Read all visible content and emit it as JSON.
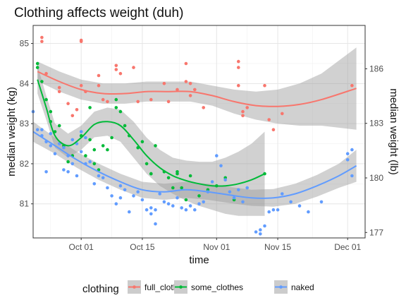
{
  "chart_data": {
    "type": "scatter",
    "title": "Clothing affects weight (duh)",
    "xlabel": "time",
    "ylabel": "median weight (kg)",
    "y2label": "median weight (lb)",
    "grid": true,
    "legend_position": "bottom",
    "legend_title": "clothing",
    "x_domain": [
      "2018-09-20",
      "2018-12-05"
    ],
    "y_domain": [
      80.15,
      85.45
    ],
    "x_ticks": [
      {
        "date": "2018-10-01",
        "label": "Oct 01"
      },
      {
        "date": "2018-10-15",
        "label": "Oct 15"
      },
      {
        "date": "2018-11-01",
        "label": "Nov 01"
      },
      {
        "date": "2018-11-15",
        "label": "Nov 15"
      },
      {
        "date": "2018-12-01",
        "label": "Dec 01"
      }
    ],
    "y_ticks": [
      81,
      82,
      83,
      84,
      85
    ],
    "y2_ticks": [
      177,
      180,
      183,
      186
    ],
    "series": [
      {
        "name": "full_clothes",
        "color": "#F8766D",
        "points": [
          [
            "2018-09-22",
            85.15
          ],
          [
            "2018-09-22",
            85.05
          ],
          [
            "2018-09-23",
            84.25
          ],
          [
            "2018-09-26",
            83.9
          ],
          [
            "2018-09-26",
            83.8
          ],
          [
            "2018-09-28",
            83.5
          ],
          [
            "2018-09-29",
            83.2
          ],
          [
            "2018-09-30",
            83.35
          ],
          [
            "2018-10-01",
            85.05
          ],
          [
            "2018-10-01",
            85.08
          ],
          [
            "2018-10-01",
            83.95
          ],
          [
            "2018-10-02",
            83.8
          ],
          [
            "2018-10-05",
            84.2
          ],
          [
            "2018-10-05",
            83.95
          ],
          [
            "2018-10-06",
            83.6
          ],
          [
            "2018-10-07",
            83.55
          ],
          [
            "2018-10-09",
            84.45
          ],
          [
            "2018-10-09",
            84.35
          ],
          [
            "2018-10-10",
            84.25
          ],
          [
            "2018-10-13",
            84.4
          ],
          [
            "2018-10-14",
            83.55
          ],
          [
            "2018-10-17",
            83.6
          ],
          [
            "2018-10-20",
            84.0
          ],
          [
            "2018-10-21",
            83.55
          ],
          [
            "2018-10-23",
            83.85
          ],
          [
            "2018-10-25",
            84.5
          ],
          [
            "2018-10-25",
            84.05
          ],
          [
            "2018-10-26",
            84.0
          ],
          [
            "2018-10-26",
            83.7
          ],
          [
            "2018-10-27",
            83.85
          ],
          [
            "2018-10-29",
            83.4
          ],
          [
            "2018-11-06",
            84.55
          ],
          [
            "2018-11-06",
            84.4
          ],
          [
            "2018-11-06",
            83.95
          ],
          [
            "2018-11-07",
            83.3
          ],
          [
            "2018-11-07",
            83.2
          ],
          [
            "2018-11-08",
            83.4
          ],
          [
            "2018-11-12",
            83.95
          ],
          [
            "2018-11-13",
            83.1
          ],
          [
            "2018-11-14",
            82.85
          ],
          [
            "2018-11-16",
            83.25
          ],
          [
            "2018-12-02",
            83.95
          ]
        ]
      },
      {
        "name": "some_clothes",
        "color": "#00BA38",
        "points": [
          [
            "2018-09-21",
            84.5
          ],
          [
            "2018-09-21",
            84.4
          ],
          [
            "2018-09-22",
            84.05
          ],
          [
            "2018-09-23",
            83.6
          ],
          [
            "2018-09-24",
            83.3
          ],
          [
            "2018-09-24",
            83.05
          ],
          [
            "2018-09-25",
            82.8
          ],
          [
            "2018-09-26",
            82.95
          ],
          [
            "2018-09-27",
            82.45
          ],
          [
            "2018-09-28",
            82.05
          ],
          [
            "2018-09-29",
            82.2
          ],
          [
            "2018-10-01",
            82.7
          ],
          [
            "2018-10-02",
            82.2
          ],
          [
            "2018-10-03",
            83.4
          ],
          [
            "2018-10-03",
            82.6
          ],
          [
            "2018-10-04",
            82.0
          ],
          [
            "2018-10-04",
            82.35
          ],
          [
            "2018-10-05",
            81.85
          ],
          [
            "2018-10-06",
            82.45
          ],
          [
            "2018-10-07",
            82.35
          ],
          [
            "2018-10-08",
            82.65
          ],
          [
            "2018-10-09",
            83.6
          ],
          [
            "2018-10-09",
            83.4
          ],
          [
            "2018-10-10",
            83.3
          ],
          [
            "2018-10-11",
            82.95
          ],
          [
            "2018-10-12",
            82.7
          ],
          [
            "2018-10-14",
            82.4
          ],
          [
            "2018-10-15",
            82.55
          ],
          [
            "2018-10-16",
            82.0
          ],
          [
            "2018-10-17",
            81.75
          ],
          [
            "2018-10-17",
            81.75
          ],
          [
            "2018-10-18",
            82.45
          ],
          [
            "2018-10-20",
            81.8
          ],
          [
            "2018-10-21",
            81.65
          ],
          [
            "2018-10-22",
            81.4
          ],
          [
            "2018-10-23",
            81.8
          ],
          [
            "2018-10-23",
            81.75
          ],
          [
            "2018-10-24",
            81.4
          ],
          [
            "2018-10-25",
            81.1
          ],
          [
            "2018-10-26",
            81.7
          ],
          [
            "2018-10-28",
            81.2
          ],
          [
            "2018-10-30",
            81.35
          ],
          [
            "2018-11-01",
            81.45
          ],
          [
            "2018-11-03",
            81.65
          ],
          [
            "2018-11-05",
            81.1
          ],
          [
            "2018-11-12",
            81.75
          ]
        ]
      },
      {
        "name": "naked",
        "color": "#619CFF",
        "points": [
          [
            "2018-09-20",
            83.3
          ],
          [
            "2018-09-21",
            82.85
          ],
          [
            "2018-09-22",
            82.85
          ],
          [
            "2018-09-22",
            82.7
          ],
          [
            "2018-09-23",
            82.55
          ],
          [
            "2018-09-23",
            81.8
          ],
          [
            "2018-09-24",
            82.75
          ],
          [
            "2018-09-24",
            82.45
          ],
          [
            "2018-09-25",
            82.25
          ],
          [
            "2018-09-26",
            82.5
          ],
          [
            "2018-09-27",
            82.4
          ],
          [
            "2018-09-27",
            81.85
          ],
          [
            "2018-09-28",
            82.2
          ],
          [
            "2018-09-28",
            81.8
          ],
          [
            "2018-09-29",
            82.6
          ],
          [
            "2018-09-29",
            82.0
          ],
          [
            "2018-09-30",
            82.5
          ],
          [
            "2018-09-30",
            81.7
          ],
          [
            "2018-10-01",
            82.8
          ],
          [
            "2018-10-01",
            82.3
          ],
          [
            "2018-10-02",
            82.65
          ],
          [
            "2018-10-02",
            82.0
          ],
          [
            "2018-10-03",
            82.05
          ],
          [
            "2018-10-04",
            81.5
          ],
          [
            "2018-10-05",
            81.7
          ],
          [
            "2018-10-06",
            81.65
          ],
          [
            "2018-10-07",
            81.4
          ],
          [
            "2018-10-08",
            81.2
          ],
          [
            "2018-10-09",
            81.0
          ],
          [
            "2018-10-10",
            81.45
          ],
          [
            "2018-10-10",
            81.15
          ],
          [
            "2018-10-11",
            81.35
          ],
          [
            "2018-10-12",
            80.8
          ],
          [
            "2018-10-13",
            81.2
          ],
          [
            "2018-10-14",
            81.3
          ],
          [
            "2018-10-15",
            81.1
          ],
          [
            "2018-10-16",
            80.85
          ],
          [
            "2018-10-17",
            80.75
          ],
          [
            "2018-10-17",
            80.9
          ],
          [
            "2018-10-18",
            80.5
          ],
          [
            "2018-10-18",
            80.85
          ],
          [
            "2018-10-19",
            81.25
          ],
          [
            "2018-10-20",
            81.05
          ],
          [
            "2018-10-21",
            81.0
          ],
          [
            "2018-10-22",
            80.95
          ],
          [
            "2018-10-23",
            81.15
          ],
          [
            "2018-10-24",
            80.9
          ],
          [
            "2018-10-25",
            80.85
          ],
          [
            "2018-10-26",
            80.95
          ],
          [
            "2018-10-27",
            80.85
          ],
          [
            "2018-10-28",
            81.0
          ],
          [
            "2018-10-29",
            81.05
          ],
          [
            "2018-10-30",
            81.3
          ],
          [
            "2018-10-31",
            81.55
          ],
          [
            "2018-11-01",
            82.2
          ],
          [
            "2018-11-02",
            81.95
          ],
          [
            "2018-11-03",
            81.6
          ],
          [
            "2018-11-04",
            81.3
          ],
          [
            "2018-11-05",
            81.15
          ],
          [
            "2018-11-06",
            81.35
          ],
          [
            "2018-11-07",
            81.05
          ],
          [
            "2018-11-08",
            81.4
          ],
          [
            "2018-11-10",
            80.3
          ],
          [
            "2018-11-11",
            80.35
          ],
          [
            "2018-11-11",
            80.25
          ],
          [
            "2018-11-12",
            80.45
          ],
          [
            "2018-11-13",
            80.8
          ],
          [
            "2018-11-14",
            80.85
          ],
          [
            "2018-11-15",
            80.85
          ],
          [
            "2018-11-16",
            81.25
          ],
          [
            "2018-11-18",
            81.05
          ],
          [
            "2018-11-20",
            80.95
          ],
          [
            "2018-11-22",
            80.8
          ],
          [
            "2018-11-25",
            81.05
          ],
          [
            "2018-12-01",
            82.25
          ],
          [
            "2018-12-01",
            82.1
          ],
          [
            "2018-12-02",
            82.35
          ],
          [
            "2018-12-02",
            81.7
          ]
        ]
      }
    ],
    "smooth": [
      {
        "name": "full_clothes",
        "color": "#F8766D",
        "fit": [
          [
            "2018-09-21",
            84.3
          ],
          [
            "2018-09-26",
            84.05
          ],
          [
            "2018-10-01",
            83.85
          ],
          [
            "2018-10-06",
            83.75
          ],
          [
            "2018-10-11",
            83.75
          ],
          [
            "2018-10-16",
            83.8
          ],
          [
            "2018-10-21",
            83.8
          ],
          [
            "2018-10-26",
            83.8
          ],
          [
            "2018-10-31",
            83.7
          ],
          [
            "2018-11-05",
            83.55
          ],
          [
            "2018-11-10",
            83.45
          ],
          [
            "2018-11-15",
            83.43
          ],
          [
            "2018-11-20",
            83.48
          ],
          [
            "2018-11-25",
            83.6
          ],
          [
            "2018-12-03",
            83.88
          ]
        ],
        "band": [
          [
            84.55,
            84.06
          ],
          [
            84.3,
            83.8
          ],
          [
            84.1,
            83.6
          ],
          [
            84.0,
            83.5
          ],
          [
            84.0,
            83.5
          ],
          [
            84.05,
            83.55
          ],
          [
            84.05,
            83.55
          ],
          [
            84.05,
            83.55
          ],
          [
            83.95,
            83.45
          ],
          [
            83.85,
            83.25
          ],
          [
            83.8,
            83.1
          ],
          [
            83.85,
            83.0
          ],
          [
            84.0,
            82.95
          ],
          [
            84.25,
            82.95
          ],
          [
            84.9,
            82.85
          ]
        ]
      },
      {
        "name": "some_clothes",
        "color": "#00BA38",
        "fit": [
          [
            "2018-09-21",
            84.1
          ],
          [
            "2018-09-23",
            83.4
          ],
          [
            "2018-09-25",
            82.7
          ],
          [
            "2018-09-28",
            82.45
          ],
          [
            "2018-10-01",
            82.65
          ],
          [
            "2018-10-04",
            82.98
          ],
          [
            "2018-10-07",
            83.05
          ],
          [
            "2018-10-10",
            82.95
          ],
          [
            "2018-10-13",
            82.6
          ],
          [
            "2018-10-16",
            82.2
          ],
          [
            "2018-10-19",
            81.9
          ],
          [
            "2018-10-22",
            81.7
          ],
          [
            "2018-10-25",
            81.58
          ],
          [
            "2018-10-28",
            81.5
          ],
          [
            "2018-10-31",
            81.45
          ],
          [
            "2018-11-03",
            81.45
          ],
          [
            "2018-11-06",
            81.5
          ],
          [
            "2018-11-09",
            81.6
          ],
          [
            "2018-11-12",
            81.75
          ]
        ],
        "band": [
          [
            84.45,
            83.75
          ],
          [
            83.7,
            83.1
          ],
          [
            83.0,
            82.4
          ],
          [
            82.75,
            82.15
          ],
          [
            82.95,
            82.35
          ],
          [
            83.3,
            82.66
          ],
          [
            83.4,
            82.7
          ],
          [
            83.35,
            82.55
          ],
          [
            83.05,
            82.15
          ],
          [
            82.65,
            81.75
          ],
          [
            82.35,
            81.45
          ],
          [
            82.15,
            81.25
          ],
          [
            82.08,
            81.08
          ],
          [
            82.05,
            80.95
          ],
          [
            82.05,
            80.85
          ],
          [
            82.15,
            80.75
          ],
          [
            82.3,
            80.7
          ],
          [
            82.5,
            80.7
          ],
          [
            82.8,
            80.7
          ]
        ]
      },
      {
        "name": "naked",
        "color": "#619CFF",
        "fit": [
          [
            "2018-09-20",
            82.8
          ],
          [
            "2018-09-25",
            82.45
          ],
          [
            "2018-09-30",
            82.1
          ],
          [
            "2018-10-05",
            81.8
          ],
          [
            "2018-10-10",
            81.55
          ],
          [
            "2018-10-15",
            81.35
          ],
          [
            "2018-10-20",
            81.3
          ],
          [
            "2018-10-25",
            81.35
          ],
          [
            "2018-10-30",
            81.3
          ],
          [
            "2018-11-04",
            81.22
          ],
          [
            "2018-11-09",
            81.15
          ],
          [
            "2018-11-14",
            81.15
          ],
          [
            "2018-11-19",
            81.25
          ],
          [
            "2018-11-24",
            81.45
          ],
          [
            "2018-11-29",
            81.7
          ],
          [
            "2018-12-03",
            81.95
          ]
        ],
        "band": [
          [
            83.05,
            82.55
          ],
          [
            82.65,
            82.25
          ],
          [
            82.3,
            81.9
          ],
          [
            82.0,
            81.6
          ],
          [
            81.75,
            81.35
          ],
          [
            81.55,
            81.15
          ],
          [
            81.5,
            81.1
          ],
          [
            81.55,
            81.15
          ],
          [
            81.5,
            81.1
          ],
          [
            81.42,
            81.02
          ],
          [
            81.35,
            80.95
          ],
          [
            81.37,
            80.93
          ],
          [
            81.5,
            81.0
          ],
          [
            81.72,
            81.18
          ],
          [
            82.0,
            81.4
          ],
          [
            82.35,
            81.55
          ]
        ]
      }
    ]
  }
}
